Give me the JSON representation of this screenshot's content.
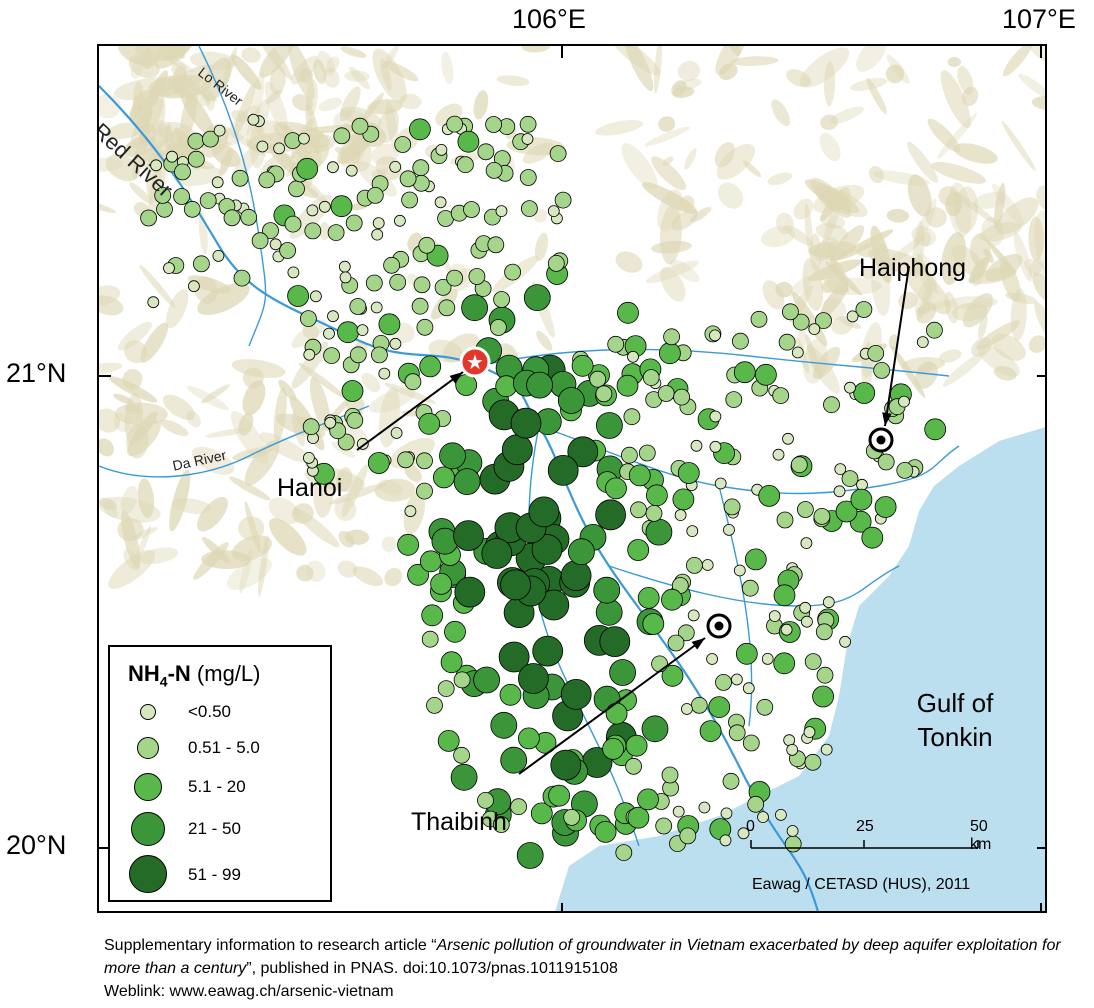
{
  "axes": {
    "longitude_ticks": [
      "106°E",
      "107°E"
    ],
    "latitude_ticks": [
      "21°N",
      "20°N"
    ]
  },
  "legend": {
    "title_bold": "NH",
    "title_sub": "4",
    "title_bold_tail": "-N",
    "unit": "(mg/L)",
    "classes": [
      {
        "label": "<0.50",
        "color": "#d7e8c0"
      },
      {
        "label": "0.51 - 5.0",
        "color": "#a5d58a"
      },
      {
        "label": "5.1 - 20",
        "color": "#58b84a"
      },
      {
        "label": "21 - 50",
        "color": "#3b9639"
      },
      {
        "label": "51 - 99",
        "color": "#236b26"
      }
    ]
  },
  "labels": {
    "cities": {
      "hanoi": "Hanoi",
      "haiphong": "Haiphong",
      "thaibinh": "Thaibinh"
    },
    "rivers": {
      "red": "Red River",
      "lo": "Lo River",
      "da": "Da River"
    },
    "sea_line1": "Gulf of",
    "sea_line2": "Tonkin"
  },
  "scale_bar": {
    "ticks": [
      "0",
      "25",
      "50 km"
    ]
  },
  "credit": "Eawag / CETASD (HUS), 2011",
  "caption": {
    "part1": "Supplementary information to research article “",
    "title": "Arsenic pollution of groundwater in Vietnam exacerbated by deep aquifer exploitation for more than a century",
    "part2": "”, published in PNAS. doi:10.1073/pnas.1011915108",
    "weblink": "Weblink: www.eawag.ch/arsenic-vietnam"
  },
  "colors": {
    "sea": "#bcdff0",
    "terrain": "#ddd7b4",
    "river": "#3a9ad9",
    "capital_marker": "#e2372a"
  }
}
